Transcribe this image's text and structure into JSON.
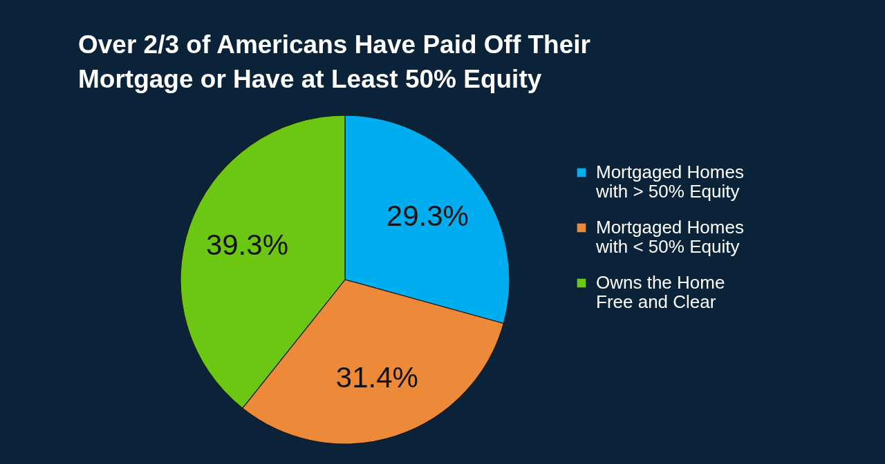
{
  "chart_data": {
    "type": "pie",
    "title": "Over 2/3 of Americans Have Paid Off Their Mortgage or Have at Least 50% Equity",
    "categories": [
      "Mortgaged Homes with > 50% Equity",
      "Mortgaged Homes with < 50% Equity",
      "Owns the Home Free and Clear"
    ],
    "values": [
      29.3,
      31.4,
      39.3
    ],
    "colors": [
      "#00adef",
      "#ed8a3a",
      "#6cc712"
    ],
    "value_labels": [
      "29.3%",
      "31.4%",
      "39.3%"
    ],
    "legend": "right"
  }
}
